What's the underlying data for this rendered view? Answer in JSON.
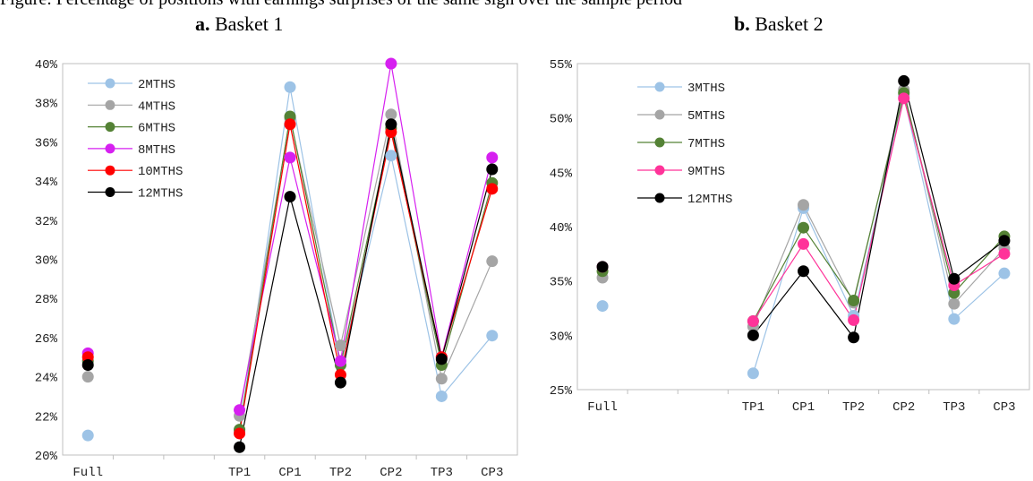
{
  "figure": {
    "caption": "Figure: Percentage of positions with earnings surprises of the same sign over the sample period"
  },
  "chart_data": [
    {
      "type": "line",
      "panel_label": "a.",
      "title": "Basket 1",
      "categories": [
        "Full",
        "",
        "",
        "TP1",
        "CP1",
        "TP2",
        "CP2",
        "TP3",
        "CP3"
      ],
      "ylim": [
        20,
        40
      ],
      "yticks": [
        20,
        22,
        24,
        26,
        28,
        30,
        32,
        34,
        36,
        38,
        40
      ],
      "y_format": "percent",
      "legend_position": "top-left",
      "series": [
        {
          "name": "2MTHS",
          "color": "#9dc3e6",
          "values": [
            21.0,
            null,
            null,
            21.2,
            38.8,
            24.6,
            35.3,
            23.0,
            26.1
          ]
        },
        {
          "name": "4MTHS",
          "color": "#a5a5a5",
          "values": [
            24.0,
            null,
            null,
            22.0,
            37.2,
            25.6,
            37.4,
            23.9,
            29.9
          ]
        },
        {
          "name": "6MTHS",
          "color": "#548235",
          "values": [
            24.8,
            null,
            null,
            21.3,
            37.3,
            24.6,
            36.7,
            24.6,
            33.9
          ]
        },
        {
          "name": "8MTHS",
          "color": "#d620f0",
          "values": [
            25.2,
            null,
            null,
            22.3,
            35.2,
            24.8,
            40.0,
            25.0,
            35.2
          ]
        },
        {
          "name": "10MTHS",
          "color": "#ff0000",
          "values": [
            25.0,
            null,
            null,
            21.1,
            36.9,
            24.1,
            36.5,
            25.0,
            33.6
          ]
        },
        {
          "name": "12MTHS",
          "color": "#000000",
          "values": [
            24.6,
            null,
            null,
            20.4,
            33.2,
            23.7,
            36.9,
            24.9,
            34.6
          ]
        }
      ]
    },
    {
      "type": "line",
      "panel_label": "b.",
      "title": "Basket 2",
      "categories": [
        "Full",
        "",
        "",
        "TP1",
        "CP1",
        "TP2",
        "CP2",
        "TP3",
        "CP3"
      ],
      "ylim": [
        25,
        55
      ],
      "yticks": [
        25,
        30,
        35,
        40,
        45,
        50,
        55
      ],
      "y_format": "percent",
      "legend_position": "top-left",
      "series": [
        {
          "name": "3MTHS",
          "color": "#9dc3e6",
          "values": [
            32.7,
            null,
            null,
            26.5,
            41.7,
            31.8,
            52.0,
            31.5,
            35.7
          ]
        },
        {
          "name": "5MTHS",
          "color": "#a5a5a5",
          "values": [
            35.3,
            null,
            null,
            30.8,
            42.0,
            33.0,
            52.6,
            32.9,
            38.0
          ]
        },
        {
          "name": "7MTHS",
          "color": "#548235",
          "values": [
            35.9,
            null,
            null,
            31.3,
            39.9,
            33.2,
            52.3,
            33.9,
            39.1
          ]
        },
        {
          "name": "9MTHS",
          "color": "#ff3399",
          "values": [
            36.3,
            null,
            null,
            31.3,
            38.4,
            31.4,
            51.8,
            34.6,
            37.5
          ]
        },
        {
          "name": "12MTHS",
          "color": "#000000",
          "values": [
            36.3,
            null,
            null,
            30.0,
            35.9,
            29.8,
            53.4,
            35.2,
            38.7
          ]
        }
      ]
    }
  ]
}
